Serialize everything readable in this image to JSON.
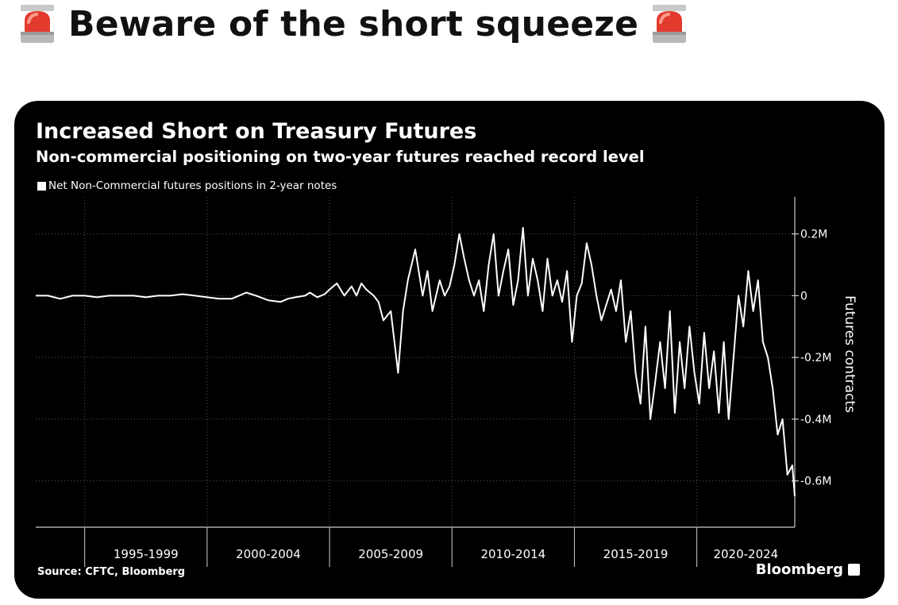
{
  "post": {
    "title": "Beware of the short squeeze",
    "emoji_icon": "police-siren-icon"
  },
  "chart_data": {
    "type": "line",
    "title": "Increased Short on Treasury Futures",
    "subtitle": "Non-commercial positioning on two-year futures reached record level",
    "legend": [
      "Net Non-Commercial futures positions in 2-year notes"
    ],
    "legend_position": "top-left",
    "ylabel": "Futures contracts",
    "ylim": [
      -0.75,
      0.32
    ],
    "xlim": [
      1993.0,
      2024.0
    ],
    "y_unit": "M",
    "y_ticks": [
      0.2,
      0,
      -0.2,
      -0.4,
      -0.6
    ],
    "y_tick_labels": [
      "0.2M",
      "0",
      "-0.2M",
      "-0.4M",
      "-0.6M"
    ],
    "x_period_labels": [
      {
        "label": "1995-1999",
        "start": 1995,
        "end": 2000
      },
      {
        "label": "2000-2004",
        "start": 2000,
        "end": 2005
      },
      {
        "label": "2005-2009",
        "start": 2005,
        "end": 2010
      },
      {
        "label": "2010-2014",
        "start": 2010,
        "end": 2015
      },
      {
        "label": "2015-2019",
        "start": 2015,
        "end": 2020
      },
      {
        "label": "2020-2024",
        "start": 2020,
        "end": 2024
      }
    ],
    "vertical_gridlines": [
      1995,
      2000,
      2005,
      2010,
      2015,
      2020
    ],
    "grid": true,
    "source": "Source: CFTC, Bloomberg",
    "brand": "Bloomberg",
    "series": [
      {
        "name": "Net Non-Commercial futures positions in 2-year notes",
        "x": [
          1993.0,
          1993.5,
          1994.0,
          1994.5,
          1995.0,
          1995.5,
          1996.0,
          1996.5,
          1997.0,
          1997.5,
          1998.0,
          1998.5,
          1999.0,
          1999.5,
          2000.0,
          2000.5,
          2001.0,
          2001.3,
          2001.6,
          2002.0,
          2002.5,
          2003.0,
          2003.3,
          2003.6,
          2004.0,
          2004.2,
          2004.5,
          2004.8,
          2005.0,
          2005.3,
          2005.6,
          2005.9,
          2006.1,
          2006.3,
          2006.5,
          2006.8,
          2007.0,
          2007.2,
          2007.5,
          2007.8,
          2008.0,
          2008.2,
          2008.5,
          2008.8,
          2009.0,
          2009.2,
          2009.5,
          2009.7,
          2009.9,
          2010.1,
          2010.3,
          2010.5,
          2010.7,
          2010.9,
          2011.1,
          2011.3,
          2011.5,
          2011.7,
          2011.9,
          2012.1,
          2012.3,
          2012.5,
          2012.7,
          2012.9,
          2013.1,
          2013.3,
          2013.5,
          2013.7,
          2013.9,
          2014.1,
          2014.3,
          2014.5,
          2014.7,
          2014.9,
          2015.1,
          2015.3,
          2015.5,
          2015.7,
          2015.9,
          2016.1,
          2016.3,
          2016.5,
          2016.7,
          2016.9,
          2017.1,
          2017.3,
          2017.5,
          2017.7,
          2017.9,
          2018.1,
          2018.3,
          2018.5,
          2018.7,
          2018.9,
          2019.1,
          2019.3,
          2019.5,
          2019.7,
          2019.9,
          2020.1,
          2020.3,
          2020.5,
          2020.7,
          2020.9,
          2021.1,
          2021.3,
          2021.5,
          2021.7,
          2021.9,
          2022.1,
          2022.3,
          2022.5,
          2022.7,
          2022.9,
          2023.1,
          2023.3,
          2023.5,
          2023.7,
          2023.9,
          2024.0
        ],
        "values": [
          0.0,
          0.0,
          -0.01,
          0.0,
          0.0,
          -0.005,
          0.0,
          0.0,
          0.0,
          -0.005,
          0.0,
          0.0,
          0.005,
          0.0,
          -0.005,
          -0.01,
          -0.01,
          0.0,
          0.01,
          0.0,
          -0.015,
          -0.02,
          -0.01,
          -0.005,
          0.0,
          0.01,
          -0.005,
          0.005,
          0.02,
          0.04,
          0.0,
          0.03,
          0.0,
          0.04,
          0.02,
          0.0,
          -0.02,
          -0.08,
          -0.05,
          -0.25,
          -0.05,
          0.05,
          0.15,
          0.0,
          0.08,
          -0.05,
          0.05,
          0.0,
          0.03,
          0.1,
          0.2,
          0.12,
          0.05,
          0.0,
          0.05,
          -0.05,
          0.1,
          0.2,
          0.0,
          0.08,
          0.15,
          -0.03,
          0.05,
          0.22,
          0.0,
          0.12,
          0.05,
          -0.05,
          0.12,
          0.0,
          0.05,
          -0.02,
          0.08,
          -0.15,
          0.0,
          0.04,
          0.17,
          0.1,
          0.0,
          -0.08,
          -0.03,
          0.02,
          -0.05,
          0.05,
          -0.15,
          -0.05,
          -0.25,
          -0.35,
          -0.1,
          -0.4,
          -0.28,
          -0.15,
          -0.3,
          -0.05,
          -0.38,
          -0.15,
          -0.3,
          -0.1,
          -0.25,
          -0.35,
          -0.12,
          -0.3,
          -0.18,
          -0.38,
          -0.15,
          -0.4,
          -0.2,
          0.0,
          -0.1,
          0.08,
          -0.05,
          0.05,
          -0.15,
          -0.2,
          -0.3,
          -0.45,
          -0.4,
          -0.58,
          -0.55,
          -0.65
        ]
      }
    ]
  }
}
